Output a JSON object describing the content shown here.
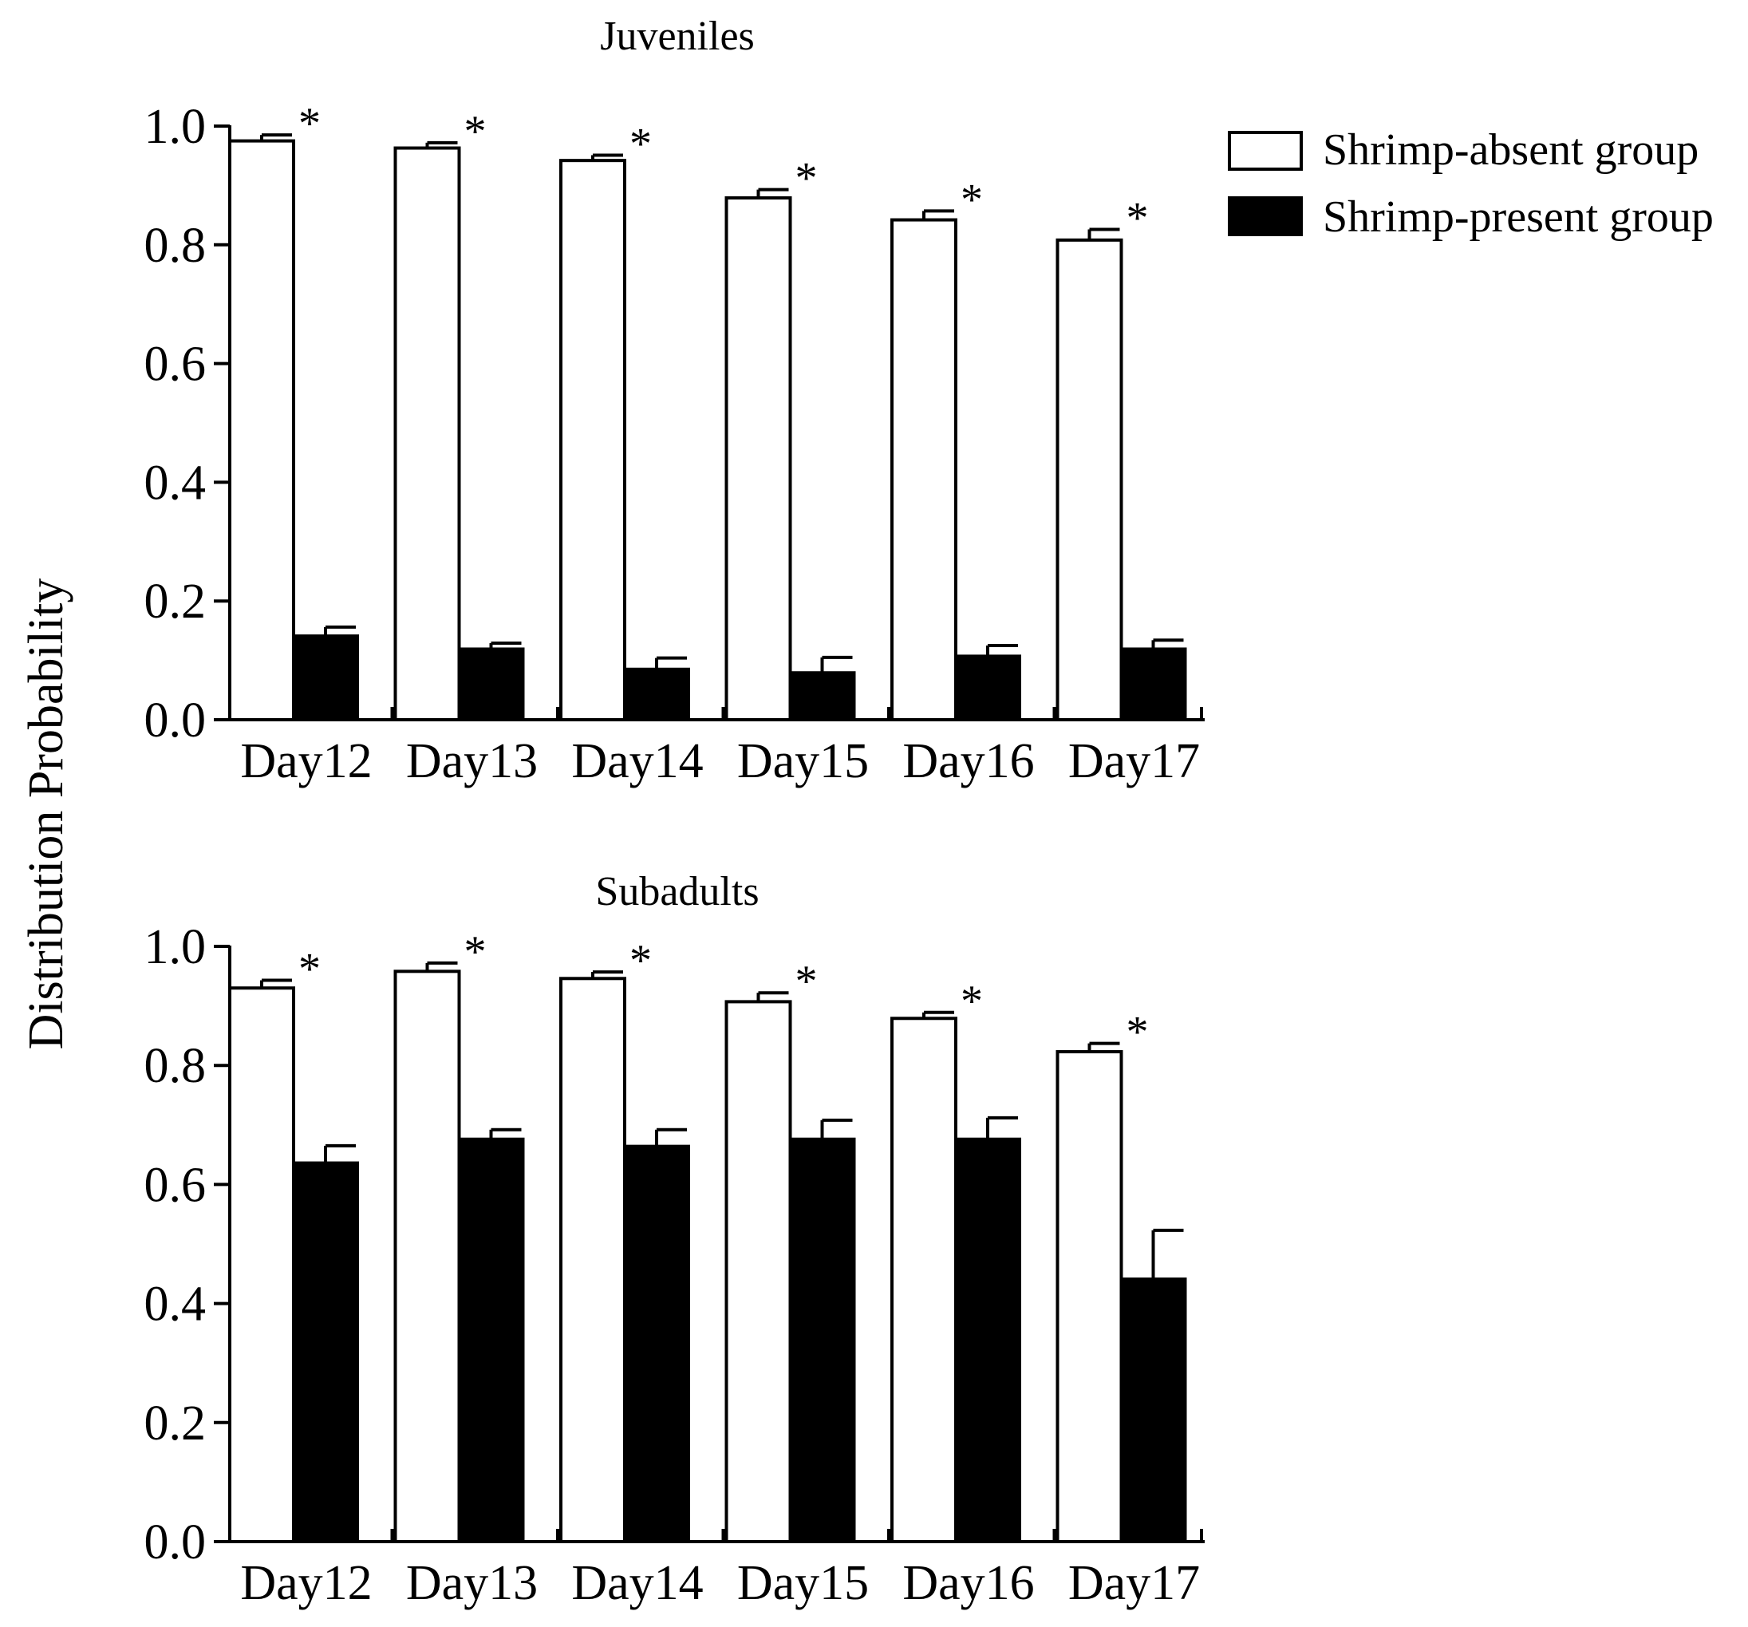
{
  "figure": {
    "ylabel": "Distribution Probability",
    "legend": [
      {
        "label": "Shrimp-absent group",
        "color": "#ffffff"
      },
      {
        "label": "Shrimp-present group",
        "color": "#000000"
      }
    ]
  },
  "chart_data": [
    {
      "type": "bar",
      "title": "Juveniles",
      "xlabel": "",
      "ylabel": "Distribution Probability",
      "ylim": [
        0,
        1.0
      ],
      "yticks": [
        "0.0",
        "0.2",
        "0.4",
        "0.6",
        "0.8",
        "1.0"
      ],
      "categories": [
        "Day12",
        "Day13",
        "Day14",
        "Day15",
        "Day16",
        "Day17"
      ],
      "series": [
        {
          "name": "Shrimp-absent group",
          "values": [
            0.975,
            0.963,
            0.942,
            0.879,
            0.842,
            0.808
          ],
          "errors": [
            0.01,
            0.009,
            0.009,
            0.014,
            0.015,
            0.018
          ]
        },
        {
          "name": "Shrimp-present group",
          "values": [
            0.141,
            0.119,
            0.085,
            0.079,
            0.107,
            0.119
          ],
          "errors": [
            0.015,
            0.01,
            0.019,
            0.026,
            0.018,
            0.015
          ]
        }
      ],
      "annotations": [
        "*",
        "*",
        "*",
        "*",
        "*",
        "*"
      ]
    },
    {
      "type": "bar",
      "title": "Subadults",
      "xlabel": "",
      "ylabel": "Distribution Probability",
      "ylim": [
        0,
        1.0
      ],
      "yticks": [
        "0.0",
        "0.2",
        "0.4",
        "0.6",
        "0.8",
        "1.0"
      ],
      "categories": [
        "Day12",
        "Day13",
        "Day14",
        "Day15",
        "Day16",
        "Day17"
      ],
      "series": [
        {
          "name": "Shrimp-absent group",
          "values": [
            0.93,
            0.958,
            0.946,
            0.907,
            0.879,
            0.823
          ],
          "errors": [
            0.013,
            0.014,
            0.011,
            0.015,
            0.01,
            0.014
          ]
        },
        {
          "name": "Shrimp-present group",
          "values": [
            0.636,
            0.676,
            0.664,
            0.676,
            0.676,
            0.441
          ],
          "errors": [
            0.029,
            0.016,
            0.028,
            0.032,
            0.036,
            0.082
          ]
        }
      ],
      "annotations": [
        "*",
        "*",
        "*",
        "*",
        "*",
        "*"
      ]
    }
  ]
}
